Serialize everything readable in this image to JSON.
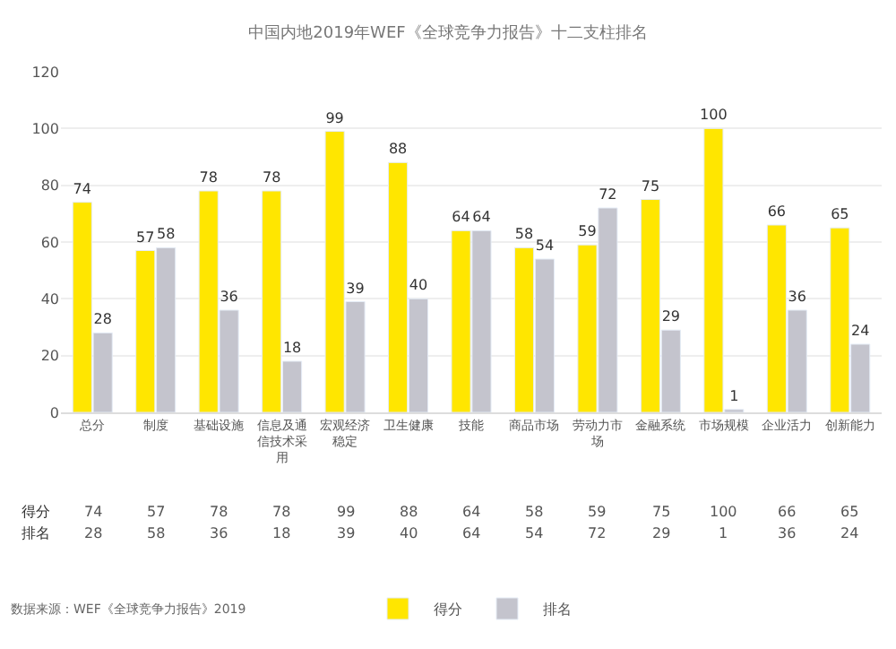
{
  "chart_data": {
    "type": "bar",
    "title": "中国内地2019年WEF《全球竞争力报告》十二支柱排名",
    "categories": [
      "总分",
      "制度",
      "基础设施",
      "信息及通信技术采用",
      "宏观经济稳定",
      "卫生健康",
      "技能",
      "商品市场",
      "劳动力市场",
      "金融系统",
      "市场规模",
      "企业活力",
      "创新能力"
    ],
    "series": [
      {
        "name": "得分",
        "color": "#ffe600",
        "values": [
          74,
          57,
          78,
          78,
          99,
          88,
          64,
          58,
          59,
          75,
          100,
          66,
          65
        ],
        "value_labels": [
          "74",
          "57",
          "78",
          "78",
          "99",
          "88",
          "64",
          "58",
          "59",
          "75",
          "100",
          "66",
          "65"
        ]
      },
      {
        "name": "排名",
        "color": "#c4c4cd",
        "values": [
          28,
          58,
          36,
          18,
          39,
          40,
          64,
          54,
          72,
          29,
          1,
          36,
          24
        ],
        "value_labels": [
          "28",
          "58",
          "36",
          "18",
          "39",
          "40",
          "64",
          "54",
          "72",
          "29",
          "1",
          "36",
          "24"
        ]
      }
    ],
    "ylim": [
      0,
      120
    ],
    "yticks": [
      0,
      20,
      40,
      60,
      80,
      100,
      120
    ],
    "grid": "y",
    "legend": "bottom",
    "data_labels": true,
    "annotations": [
      "数据来源：WEF《全球竞争力报告》2019"
    ]
  }
}
